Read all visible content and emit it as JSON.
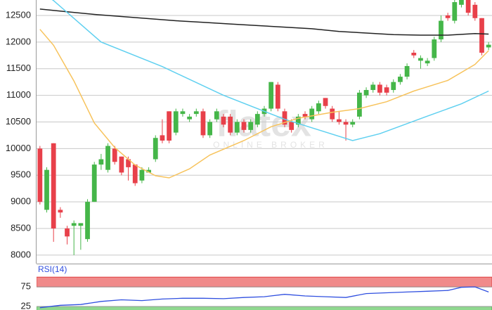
{
  "watermark": "flatex",
  "watermark_sub": "ONLINE BROKER",
  "chart_data": [
    {
      "type": "candlestick",
      "up_color": "#45b649",
      "down_color": "#e8404a",
      "open": [
        10000,
        8850,
        10100,
        8850,
        8500,
        8550,
        8550,
        8300,
        9000,
        9700,
        9600,
        10000,
        9850,
        9800,
        9700,
        9400,
        9550,
        9800,
        10250,
        10700,
        10300,
        10650,
        10550,
        10650,
        10700,
        10250,
        10550,
        10600,
        10600,
        10300,
        10500,
        10350,
        10450,
        10650,
        10750,
        11200,
        10700,
        10500,
        10450,
        10650,
        10550,
        10700,
        10950,
        10750,
        10550,
        10500,
        10450,
        10600,
        11000,
        11100,
        11200,
        11150,
        11100,
        11250,
        11350,
        11800,
        11650,
        11600,
        11700,
        12050,
        12500,
        12400,
        12700,
        12800,
        12700,
        12450,
        11900
      ],
      "high": [
        10050,
        9650,
        10100,
        8900,
        8550,
        8650,
        8600,
        9050,
        9750,
        9900,
        10100,
        10050,
        9850,
        9850,
        9700,
        9650,
        9650,
        10250,
        10550,
        10700,
        10750,
        10750,
        10650,
        10750,
        10750,
        10550,
        10750,
        10650,
        10650,
        10550,
        10550,
        10550,
        10700,
        10800,
        11250,
        11250,
        10750,
        10550,
        10650,
        10700,
        10800,
        10900,
        10950,
        10800,
        10700,
        10550,
        10550,
        11100,
        11150,
        11250,
        11250,
        11200,
        11300,
        11400,
        11600,
        11850,
        11750,
        11700,
        12100,
        12500,
        12550,
        12800,
        12850,
        12850,
        12750,
        12450,
        12000
      ],
      "low": [
        8950,
        8800,
        8250,
        8700,
        8200,
        8000,
        8100,
        8250,
        9000,
        9600,
        9550,
        9700,
        9500,
        9400,
        9300,
        9350,
        9550,
        9750,
        10100,
        10100,
        10250,
        10600,
        10500,
        10600,
        10200,
        10200,
        10500,
        10400,
        10250,
        10250,
        10300,
        10300,
        10400,
        10600,
        10700,
        10700,
        10400,
        10300,
        10400,
        10550,
        10500,
        10650,
        10750,
        10500,
        10450,
        10150,
        10400,
        10550,
        10950,
        11050,
        11000,
        11000,
        11050,
        11200,
        11300,
        11700,
        11500,
        11550,
        11650,
        12000,
        12400,
        12350,
        12650,
        12500,
        12400,
        11750,
        11850
      ],
      "close": [
        9000,
        9600,
        8500,
        8800,
        8350,
        8600,
        8600,
        9000,
        9700,
        9800,
        10050,
        9750,
        9550,
        9650,
        9350,
        9600,
        9600,
        10200,
        10150,
        10150,
        10700,
        10700,
        10600,
        10700,
        10250,
        10500,
        10700,
        10450,
        10300,
        10500,
        10350,
        10500,
        10650,
        10750,
        11250,
        10750,
        10450,
        10350,
        10600,
        10600,
        10750,
        10850,
        10800,
        10550,
        10500,
        10450,
        10500,
        11050,
        11100,
        11200,
        11050,
        11050,
        11250,
        11350,
        11550,
        11750,
        11700,
        11650,
        12050,
        12400,
        12450,
        12750,
        12800,
        12550,
        12450,
        11800,
        11950
      ],
      "overlays": [
        {
          "color": "#222222",
          "x": [
            0,
            4,
            8,
            12,
            16,
            20,
            24,
            28,
            32,
            36,
            40,
            44,
            48,
            52,
            56,
            60,
            64,
            66
          ],
          "values": [
            12620,
            12570,
            12520,
            12480,
            12440,
            12400,
            12370,
            12340,
            12310,
            12280,
            12250,
            12200,
            12170,
            12140,
            12130,
            12130,
            12160,
            12150
          ]
        },
        {
          "color": "#5fd0f0",
          "x": [
            0,
            2,
            9,
            18,
            27,
            36,
            41,
            46,
            50,
            57,
            62,
            66
          ],
          "values": [
            12950,
            12780,
            12000,
            11540,
            11000,
            10550,
            10350,
            10150,
            10280,
            10610,
            10840,
            11080
          ]
        },
        {
          "color": "#f7c35c",
          "x": [
            0,
            2,
            5,
            8,
            11,
            14,
            17,
            19,
            22,
            25,
            30,
            34,
            38,
            43,
            47,
            51,
            55,
            60,
            64,
            66
          ],
          "values": [
            12240,
            11940,
            11270,
            10480,
            10020,
            9690,
            9490,
            9450,
            9620,
            9880,
            10150,
            10410,
            10570,
            10680,
            10750,
            10880,
            11080,
            11280,
            11580,
            11840
          ]
        }
      ],
      "ylim": [
        7840,
        12790
      ],
      "yticks": [
        8000,
        8500,
        9000,
        9500,
        10000,
        10500,
        11000,
        11500,
        12000,
        12500
      ],
      "grid": true
    },
    {
      "type": "line",
      "title": "RSI(14)",
      "color": "#2f4fe0",
      "x": [
        0,
        3,
        6,
        9,
        12,
        15,
        18,
        21,
        24,
        27,
        30,
        33,
        36,
        39,
        42,
        45,
        48,
        51,
        54,
        57,
        60,
        62,
        64,
        66
      ],
      "values": [
        22,
        28,
        30,
        38,
        42,
        40,
        44,
        46,
        46,
        45,
        48,
        50,
        56,
        52,
        50,
        48,
        58,
        60,
        62,
        64,
        66,
        74,
        75,
        62
      ],
      "ylim": [
        16,
        104
      ],
      "yticks": [
        75,
        25
      ],
      "bands": [
        {
          "from": 75,
          "to": 100,
          "color": "#f08a8a",
          "stroke": "#e04040"
        },
        {
          "from": 0,
          "to": 25,
          "color": "#8fd88f",
          "stroke": "#40b040"
        }
      ],
      "grid": true
    }
  ]
}
